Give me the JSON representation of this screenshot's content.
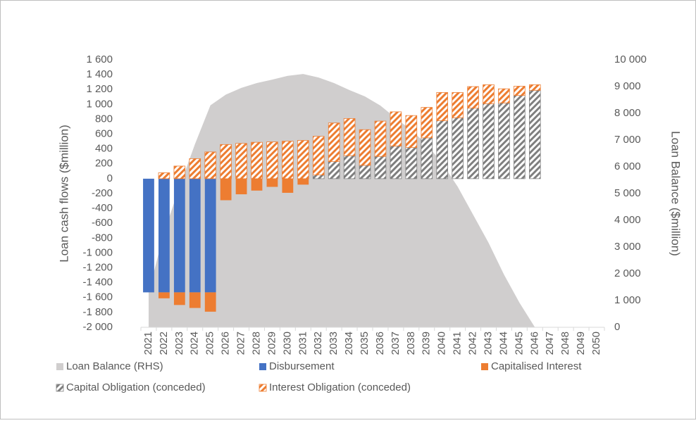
{
  "chart_data": {
    "type": "bar",
    "stacked": true,
    "categories": [
      "2021",
      "2022",
      "2023",
      "2024",
      "2025",
      "2026",
      "2027",
      "2028",
      "2029",
      "2030",
      "2031",
      "2032",
      "2033",
      "2034",
      "2035",
      "2036",
      "2037",
      "2038",
      "2039",
      "2040",
      "2041",
      "2042",
      "2043",
      "2044",
      "2045",
      "2046",
      "2047",
      "2048",
      "2049",
      "2050"
    ],
    "series": [
      {
        "name": "Loan Balance (RHS)",
        "type": "area",
        "axis": "y2",
        "color": "#d0cece",
        "values": [
          1300,
          3550,
          5250,
          6850,
          8300,
          8700,
          8950,
          9130,
          9260,
          9400,
          9470,
          9340,
          9130,
          8870,
          8630,
          8290,
          7820,
          7370,
          6840,
          6130,
          5260,
          4210,
          3160,
          1970,
          920,
          0,
          null,
          null,
          null,
          null
        ]
      },
      {
        "name": "Disbursement",
        "color": "#4472c4",
        "values": [
          -1530,
          -1530,
          -1530,
          -1530,
          -1530,
          null,
          null,
          null,
          null,
          null,
          null,
          null,
          null,
          null,
          null,
          null,
          null,
          null,
          null,
          null,
          null,
          null,
          null,
          null,
          null,
          null,
          null,
          null,
          null,
          null
        ]
      },
      {
        "name": "Capitalised Interest",
        "color": "#ed7d31",
        "values": [
          null,
          -80,
          -170,
          -210,
          -260,
          -290,
          -210,
          -160,
          -110,
          -190,
          -80,
          null,
          null,
          null,
          null,
          null,
          null,
          null,
          null,
          null,
          null,
          null,
          null,
          null,
          null,
          null,
          null,
          null,
          null,
          null
        ]
      },
      {
        "name": "Capital Obligation (conceded)",
        "color": "#7f7f7f",
        "hatched": true,
        "values": [
          null,
          null,
          null,
          null,
          null,
          null,
          null,
          null,
          null,
          null,
          null,
          50,
          230,
          310,
          180,
          300,
          440,
          420,
          550,
          780,
          820,
          950,
          1010,
          1020,
          1120,
          1190,
          null,
          null,
          null,
          null
        ]
      },
      {
        "name": "Interest Obligation (conceded)",
        "color": "#ed7d31",
        "hatched": true,
        "values": [
          null,
          80,
          170,
          270,
          360,
          460,
          475,
          490,
          495,
          505,
          515,
          520,
          520,
          500,
          480,
          475,
          460,
          430,
          410,
          380,
          340,
          290,
          255,
          190,
          125,
          75,
          null,
          null,
          null,
          null
        ]
      }
    ],
    "y_label": "Loan cash flows ($million)",
    "y2_label": "Loan Balance ($million)",
    "ylim": [
      -2000,
      1600
    ],
    "yticks": [
      {
        "value": 1600,
        "label": "1 600"
      },
      {
        "value": 1400,
        "label": "1 400"
      },
      {
        "value": 1200,
        "label": "1 200"
      },
      {
        "value": 1000,
        "label": "1 000"
      },
      800,
      600,
      400,
      200,
      0,
      -200,
      -400,
      -600,
      -800,
      {
        "value": -1000,
        "label": "-1 000"
      },
      {
        "value": -1200,
        "label": "-1 200"
      },
      {
        "value": -1400,
        "label": "-1 400"
      },
      {
        "value": -1600,
        "label": "-1 600"
      },
      {
        "value": -1800,
        "label": "-1 800"
      },
      {
        "value": -2000,
        "label": "-2 000"
      }
    ],
    "y2lim": [
      0,
      10000
    ],
    "y2ticks": [
      {
        "value": 10000,
        "label": "10 000"
      },
      {
        "value": 9000,
        "label": "9 000"
      },
      {
        "value": 8000,
        "label": "8 000"
      },
      {
        "value": 7000,
        "label": "7 000"
      },
      {
        "value": 6000,
        "label": "6 000"
      },
      {
        "value": 5000,
        "label": "5 000"
      },
      {
        "value": 4000,
        "label": "4 000"
      },
      {
        "value": 3000,
        "label": "3 000"
      },
      {
        "value": 2000,
        "label": "2 000"
      },
      {
        "value": 1000,
        "label": "1 000"
      },
      0
    ],
    "legend": "bottom"
  }
}
